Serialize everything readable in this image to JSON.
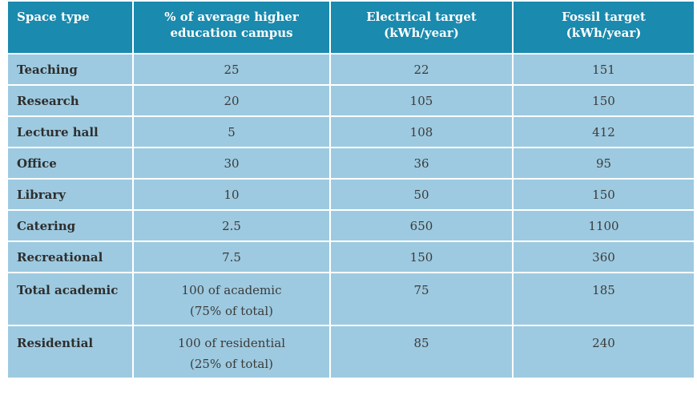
{
  "table": {
    "headers": {
      "space_type": "Space type",
      "pct_line1": "% of average higher",
      "pct_line2": "education campus",
      "elec_line1": "Electrical target",
      "elec_line2": "(kWh/year)",
      "fossil_line1": "Fossil target",
      "fossil_line2": "(kWh/year)"
    },
    "rows": [
      {
        "space": "Teaching",
        "pct": "25",
        "electrical": "22",
        "fossil": "151"
      },
      {
        "space": "Research",
        "pct": "20",
        "electrical": "105",
        "fossil": "150"
      },
      {
        "space": "Lecture hall",
        "pct": "5",
        "electrical": "108",
        "fossil": "412"
      },
      {
        "space": "Office",
        "pct": "30",
        "electrical": "36",
        "fossil": "95"
      },
      {
        "space": "Library",
        "pct": "10",
        "electrical": "50",
        "fossil": "150"
      },
      {
        "space": "Catering",
        "pct": "2.5",
        "electrical": "650",
        "fossil": "1100"
      },
      {
        "space": "Recreational",
        "pct": "7.5",
        "electrical": "150",
        "fossil": "360"
      },
      {
        "space": "Total academic",
        "pct_line1": "100 of academic",
        "pct_line2": "(75% of total)",
        "electrical": "75",
        "fossil": "185"
      },
      {
        "space": "Residential",
        "pct_line1": "100 of residential",
        "pct_line2": "(25% of total)",
        "electrical": "85",
        "fossil": "240"
      }
    ]
  },
  "colors": {
    "header_bg": "#1a8aae",
    "row_bg": "#9dcae0",
    "divider": "#ffffff"
  }
}
